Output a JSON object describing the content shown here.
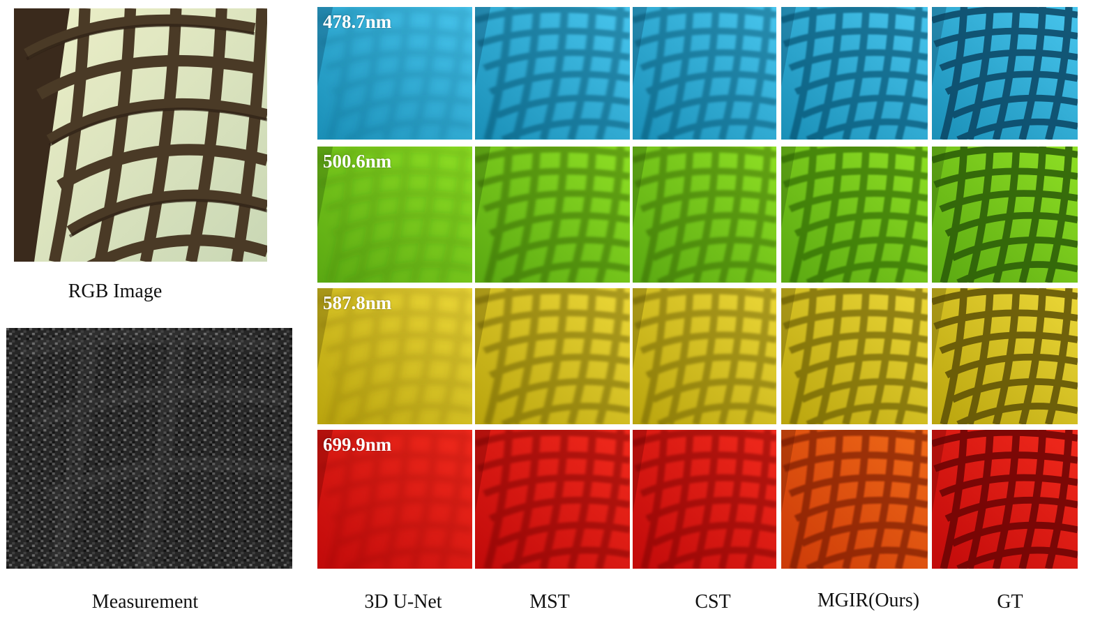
{
  "left_captions": {
    "rgb": "RGB Image",
    "measurement": "Measurement"
  },
  "method_captions": [
    "3D U-Net",
    "MST",
    "CST",
    "MGIR(Ours)",
    "GT"
  ],
  "wavelengths": [
    {
      "label": "478.7nm",
      "base": "#1a8fb7",
      "light": "#48c6ee",
      "dark": "#0b4563"
    },
    {
      "label": "500.6nm",
      "base": "#5aa812",
      "light": "#8fe024",
      "dark": "#2a5a08"
    },
    {
      "label": "587.8nm",
      "base": "#b9a40d",
      "light": "#ecd838",
      "dark": "#5c4f06"
    },
    {
      "label": "699.9nm",
      "base": "#c10a0a",
      "light": "#f22a1c",
      "dark": "#6a0404"
    }
  ],
  "ours_red_tint": {
    "base": "#cc3a08",
    "light": "#f06a18",
    "dark": "#6a1a02"
  }
}
